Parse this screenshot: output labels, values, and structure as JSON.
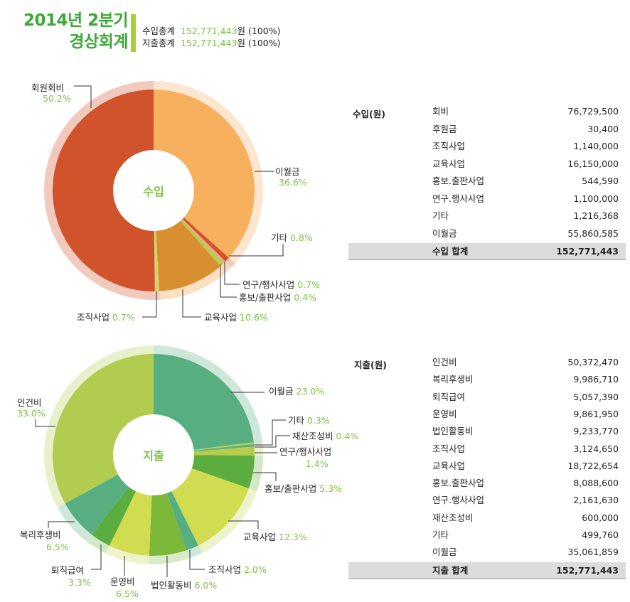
{
  "header": {
    "title_line1": "2014년 2분기",
    "title_line2": "경상회계",
    "income_total_label": "수입총계",
    "income_total_value": "152,771,443",
    "income_total_unit": "원",
    "income_total_pct": "(100%)",
    "expense_total_label": "지출총계",
    "expense_total_value": "152,771,443",
    "expense_total_unit": "원",
    "expense_total_pct": "(100%)"
  },
  "chart_data": [
    {
      "type": "pie",
      "title": "수입",
      "donut": true,
      "slices": [
        {
          "label": "이월금",
          "value": 36.6,
          "pct": "36.6%",
          "color": "#f7b05e",
          "ring": "#fde6cf"
        },
        {
          "label": "기타",
          "value": 0.8,
          "pct": "0.8%",
          "color": "#d3522a",
          "ring": "#f2c9bd"
        },
        {
          "label": "홍보/출판사업",
          "value": 0.4,
          "pct": "0.4%",
          "color": "#f0a58a",
          "ring": "#f8d5c5"
        },
        {
          "label": "연구/행사사업",
          "value": 0.7,
          "pct": "0.7%",
          "color": "#b5cf4a",
          "ring": "#f8dcc0"
        },
        {
          "label": "교육사업",
          "value": 10.6,
          "pct": "10.6%",
          "color": "#d88f30",
          "ring": "#fbe0c4"
        },
        {
          "label": "조직사업",
          "value": 0.7,
          "pct": "0.7%",
          "color": "#d6d36a",
          "ring": "#f2c9bd"
        },
        {
          "label": "회원회비",
          "value": 50.2,
          "pct": "50.2%",
          "color": "#d0532b",
          "ring": "#f2c9bd"
        }
      ]
    },
    {
      "type": "pie",
      "title": "지출",
      "donut": true,
      "slices": [
        {
          "label": "이월금",
          "value": 23.0,
          "pct": "23.0%",
          "color": "#57ae80",
          "ring": "#cfe6da"
        },
        {
          "label": "기타",
          "value": 0.3,
          "pct": "0.3%",
          "color": "#b5cf4a",
          "ring": "#cfe6da"
        },
        {
          "label": "재산조성비",
          "value": 0.4,
          "pct": "0.4%",
          "color": "#57ae80",
          "ring": "#cfe6da"
        },
        {
          "label": "연구/행사사업",
          "value": 1.4,
          "pct": "1.4%",
          "color": "#b5cc4c",
          "ring": "#e8f0cc"
        },
        {
          "label": "홍보/출판사업",
          "value": 5.3,
          "pct": "5.3%",
          "color": "#5aad3e",
          "ring": "#d3e8c8"
        },
        {
          "label": "교육사업",
          "value": 12.3,
          "pct": "12.3%",
          "color": "#d2dc50",
          "ring": "#eef3cc"
        },
        {
          "label": "조직사업",
          "value": 2.0,
          "pct": "2.0%",
          "color": "#57ae80",
          "ring": "#cfe6da"
        },
        {
          "label": "법인활동비",
          "value": 6.0,
          "pct": "6.0%",
          "color": "#7cb83a",
          "ring": "#dbeac8"
        },
        {
          "label": "운영비",
          "value": 6.5,
          "pct": "6.5%",
          "color": "#d2dc50",
          "ring": "#eef3cc"
        },
        {
          "label": "퇴직급여",
          "value": 3.3,
          "pct": "3.3%",
          "color": "#5aad3e",
          "ring": "#d3e8c8"
        },
        {
          "label": "복리후생비",
          "value": 6.5,
          "pct": "6.5%",
          "color": "#57ae80",
          "ring": "#cfe6da"
        },
        {
          "label": "인건비",
          "value": 33.0,
          "pct": "33.0%",
          "color": "#b1cc4e",
          "ring": "#e8f0cc"
        }
      ]
    }
  ],
  "income_table": {
    "heading": "수입(원)",
    "rows": [
      {
        "name": "회비",
        "value": "76,729,500"
      },
      {
        "name": "후원금",
        "value": "30,400"
      },
      {
        "name": "조직사업",
        "value": "1,140,000"
      },
      {
        "name": "교육사업",
        "value": "16,150,000"
      },
      {
        "name": "홍보.출판사업",
        "value": "544,590"
      },
      {
        "name": "연구.행사사업",
        "value": "1,100,000"
      },
      {
        "name": "기타",
        "value": "1,216,368"
      },
      {
        "name": "이월금",
        "value": "55,860,585"
      }
    ],
    "total_label": "수입 합계",
    "total_value": "152,771,443"
  },
  "expense_table": {
    "heading": "지출(원)",
    "rows": [
      {
        "name": "인건비",
        "value": "50,372,470"
      },
      {
        "name": "복리후생비",
        "value": "9,986,710"
      },
      {
        "name": "퇴직급여",
        "value": "5,057,390"
      },
      {
        "name": "운영비",
        "value": "9,861,950"
      },
      {
        "name": "법인활동비",
        "value": "9,233,770"
      },
      {
        "name": "조직사업",
        "value": "3,124,650"
      },
      {
        "name": "교육사업",
        "value": "18,722,654"
      },
      {
        "name": "홍보.출판사업",
        "value": "8,088,600"
      },
      {
        "name": "연구.행사사업",
        "value": "2,161,630"
      },
      {
        "name": "재산조성비",
        "value": "600,000"
      },
      {
        "name": "기타",
        "value": "499,760"
      },
      {
        "name": "이월금",
        "value": "35,061,859"
      }
    ],
    "total_label": "지출 합계",
    "total_value": "152,771,443"
  }
}
